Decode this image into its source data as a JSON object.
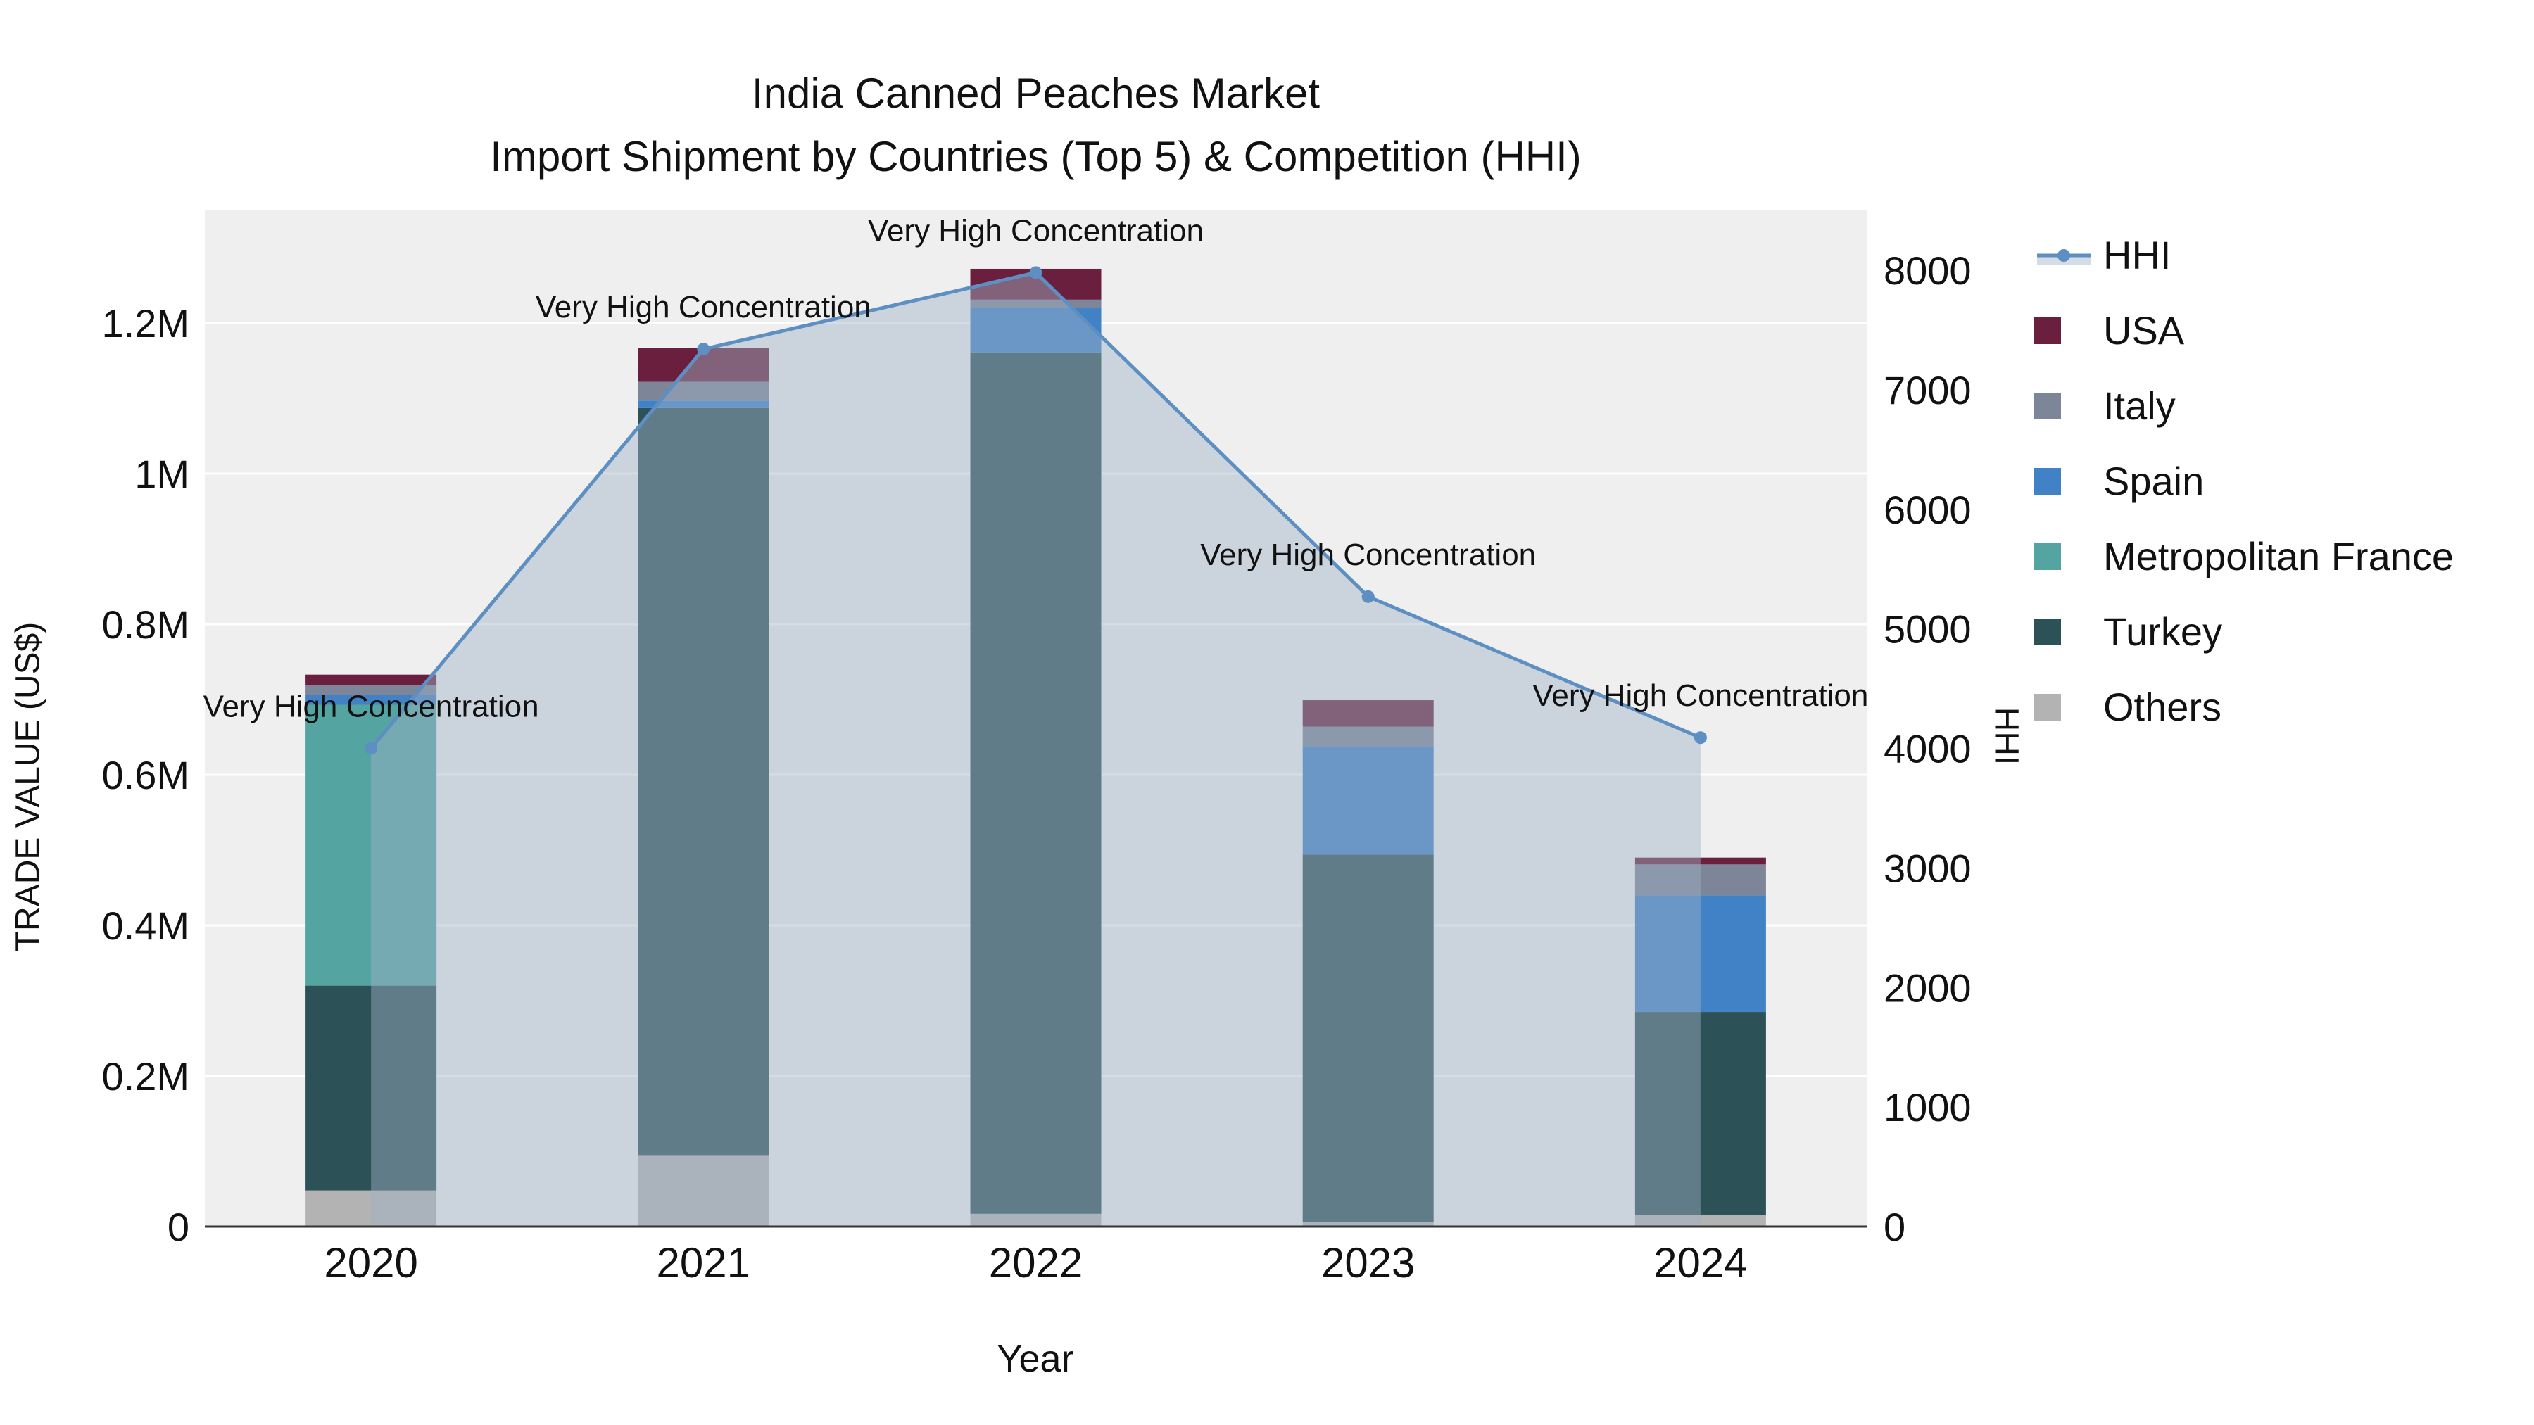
{
  "title": {
    "line1": "India Canned Peaches Market",
    "line2": "Import Shipment by Countries (Top 5) & Competition (HHI)"
  },
  "axis_labels": {
    "y_left": "TRADE VALUE (US$)",
    "y_right": "HHI",
    "x": "Year"
  },
  "chart_data": {
    "type": "bar",
    "subtype": "stacked-bars-with-hhi-line-overlay",
    "categories": [
      "2020",
      "2021",
      "2022",
      "2023",
      "2024"
    ],
    "bar_series": [
      {
        "name": "Others",
        "color": "#b3b3b3",
        "values": [
          48000,
          94000,
          17000,
          6000,
          15000
        ]
      },
      {
        "name": "Turkey",
        "color": "#2c5157",
        "values": [
          272000,
          993000,
          1144000,
          488000,
          270000
        ]
      },
      {
        "name": "Metropolitan France",
        "color": "#54a5a2",
        "values": [
          373000,
          0,
          0,
          0,
          0
        ]
      },
      {
        "name": "Spain",
        "color": "#4181c6",
        "values": [
          13000,
          10000,
          59000,
          144000,
          155000
        ]
      },
      {
        "name": "Italy",
        "color": "#7c8698",
        "values": [
          13000,
          25000,
          11000,
          26000,
          41000
        ]
      },
      {
        "name": "USA",
        "color": "#6b1f3f",
        "values": [
          14000,
          45000,
          41000,
          35000,
          9000
        ]
      }
    ],
    "line_series": {
      "name": "HHI",
      "color": "#5d8fc3",
      "area_fill": "rgba(160,178,198,0.45)",
      "values": [
        4000,
        7340,
        7980,
        5270,
        4090
      ]
    },
    "annotations": [
      "Very High Concentration",
      "Very High Concentration",
      "Very High Concentration",
      "Very High Concentration",
      "Very High Concentration"
    ],
    "y_left_axis": {
      "ticks": [
        {
          "label": "0",
          "value": 0
        },
        {
          "label": "0.2M",
          "value": 200000
        },
        {
          "label": "0.4M",
          "value": 400000
        },
        {
          "label": "0.6M",
          "value": 600000
        },
        {
          "label": "0.8M",
          "value": 800000
        },
        {
          "label": "1M",
          "value": 1000000
        },
        {
          "label": "1.2M",
          "value": 1200000
        }
      ]
    },
    "y_right_axis": {
      "ticks": [
        {
          "label": "0",
          "value": 0
        },
        {
          "label": "1000",
          "value": 1000
        },
        {
          "label": "2000",
          "value": 2000
        },
        {
          "label": "3000",
          "value": 3000
        },
        {
          "label": "4000",
          "value": 4000
        },
        {
          "label": "5000",
          "value": 5000
        },
        {
          "label": "6000",
          "value": 6000
        },
        {
          "label": "7000",
          "value": 7000
        },
        {
          "label": "8000",
          "value": 8000
        }
      ]
    },
    "legend": [
      {
        "label": "HHI",
        "symbol": "line",
        "color": "#5d8fc3"
      },
      {
        "label": "USA",
        "symbol": "square",
        "color": "#6b1f3f"
      },
      {
        "label": "Italy",
        "symbol": "square",
        "color": "#7c8698"
      },
      {
        "label": "Spain",
        "symbol": "square",
        "color": "#4181c6"
      },
      {
        "label": "Metropolitan France",
        "symbol": "square",
        "color": "#54a5a2"
      },
      {
        "label": "Turkey",
        "symbol": "square",
        "color": "#2c5157"
      },
      {
        "label": "Others",
        "symbol": "square",
        "color": "#b3b3b3"
      }
    ],
    "plot_background": "#efefef",
    "gridline_color": "#ffffff"
  }
}
